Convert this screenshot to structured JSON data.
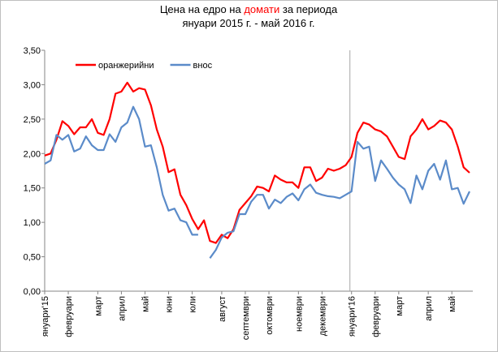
{
  "chart_data": {
    "type": "line",
    "title": {
      "before": "Цена на едро на ",
      "highlight": "домати",
      "after": " за периода"
    },
    "subtitle": "януари 2015 г. - май 2016 г.",
    "title_highlight_color": "#ff0000",
    "categories": [
      "януари'15",
      null,
      null,
      null,
      "февруари",
      null,
      null,
      null,
      null,
      "март",
      null,
      null,
      null,
      "април",
      null,
      null,
      null,
      "май",
      null,
      null,
      null,
      "юни",
      null,
      null,
      null,
      "юли",
      null,
      null,
      null,
      null,
      "август",
      null,
      null,
      null,
      "септември",
      null,
      null,
      null,
      "октомври",
      null,
      null,
      null,
      null,
      "ноември",
      null,
      null,
      null,
      "декември",
      null,
      null,
      null,
      null,
      "януари'16",
      null,
      null,
      null,
      "февруари",
      null,
      null,
      null,
      "март",
      null,
      null,
      null,
      null,
      "април",
      null,
      null,
      null,
      "май",
      null,
      null,
      null
    ],
    "series": [
      {
        "name": "оранжерийни",
        "color": "#ff0000",
        "values": [
          1.97,
          2.0,
          2.2,
          2.47,
          2.4,
          2.28,
          2.38,
          2.38,
          2.5,
          2.3,
          2.27,
          2.5,
          2.87,
          2.9,
          3.03,
          2.9,
          2.95,
          2.93,
          2.7,
          2.35,
          2.1,
          1.73,
          1.77,
          1.4,
          1.25,
          1.05,
          0.9,
          1.03,
          0.73,
          0.7,
          0.82,
          0.77,
          0.9,
          1.18,
          1.28,
          1.38,
          1.52,
          1.5,
          1.45,
          1.68,
          1.62,
          1.58,
          1.58,
          1.5,
          1.8,
          1.8,
          1.6,
          1.65,
          1.78,
          1.75,
          1.78,
          1.83,
          1.95,
          2.3,
          2.45,
          2.42,
          2.35,
          2.32,
          2.25,
          2.1,
          1.95,
          1.92,
          2.25,
          2.35,
          2.5,
          2.35,
          2.4,
          2.48,
          2.45,
          2.35,
          2.1,
          1.8,
          1.72
        ]
      },
      {
        "name": "внос",
        "color": "#5b8bc9",
        "values": [
          1.85,
          1.9,
          2.27,
          2.2,
          2.27,
          2.03,
          2.07,
          2.25,
          2.12,
          2.05,
          2.05,
          2.28,
          2.17,
          2.38,
          2.45,
          2.68,
          2.5,
          2.1,
          2.12,
          1.8,
          1.4,
          1.17,
          1.2,
          1.03,
          1.0,
          0.82,
          0.82,
          null,
          0.48,
          0.6,
          0.78,
          0.85,
          0.87,
          1.12,
          1.12,
          1.3,
          1.4,
          1.4,
          1.2,
          1.33,
          1.28,
          1.37,
          1.42,
          1.32,
          1.48,
          1.55,
          1.43,
          1.4,
          1.38,
          1.37,
          1.35,
          1.4,
          1.45,
          2.17,
          2.07,
          2.1,
          1.6,
          1.9,
          1.78,
          1.65,
          1.55,
          1.48,
          1.28,
          1.68,
          1.48,
          1.75,
          1.85,
          1.62,
          1.9,
          1.48,
          1.5,
          1.27,
          1.45
        ]
      }
    ],
    "ylim": [
      0,
      3.5
    ],
    "yticks": [
      {
        "value": 0,
        "label": "0,00"
      },
      {
        "value": 0.5,
        "label": "0,50"
      },
      {
        "value": 1,
        "label": "1,00"
      },
      {
        "value": 1.5,
        "label": "1,50"
      },
      {
        "value": 2,
        "label": "2,00"
      },
      {
        "value": 2.5,
        "label": "2,50"
      },
      {
        "value": 3,
        "label": "3,00"
      },
      {
        "value": 3.5,
        "label": "3,50"
      }
    ],
    "grid": false,
    "legend": "top-left"
  }
}
